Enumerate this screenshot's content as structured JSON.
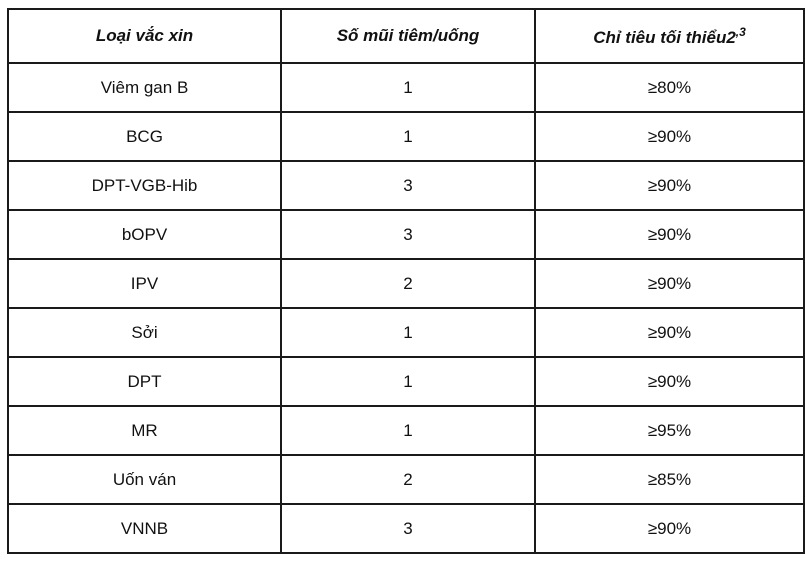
{
  "table": {
    "headers": {
      "vaccine_type": "Loại vắc xin",
      "doses": "Số mũi tiêm/uống",
      "min_target": "Chỉ tiêu tối thiểu2",
      "min_target_sup": ",3"
    },
    "rows": [
      {
        "vaccine": "Viêm gan B",
        "doses": "1",
        "target": "≥80%"
      },
      {
        "vaccine": "BCG",
        "doses": "1",
        "target": "≥90%"
      },
      {
        "vaccine": "DPT-VGB-Hib",
        "doses": "3",
        "target": "≥90%"
      },
      {
        "vaccine": "bOPV",
        "doses": "3",
        "target": "≥90%"
      },
      {
        "vaccine": "IPV",
        "doses": "2",
        "target": "≥90%"
      },
      {
        "vaccine": "Sởi",
        "doses": "1",
        "target": "≥90%"
      },
      {
        "vaccine": "DPT",
        "doses": "1",
        "target": "≥90%"
      },
      {
        "vaccine": "MR",
        "doses": "1",
        "target": "≥95%"
      },
      {
        "vaccine": "Uốn ván",
        "doses": "2",
        "target": "≥85%"
      },
      {
        "vaccine": "VNNB",
        "doses": "3",
        "target": "≥90%"
      }
    ]
  }
}
